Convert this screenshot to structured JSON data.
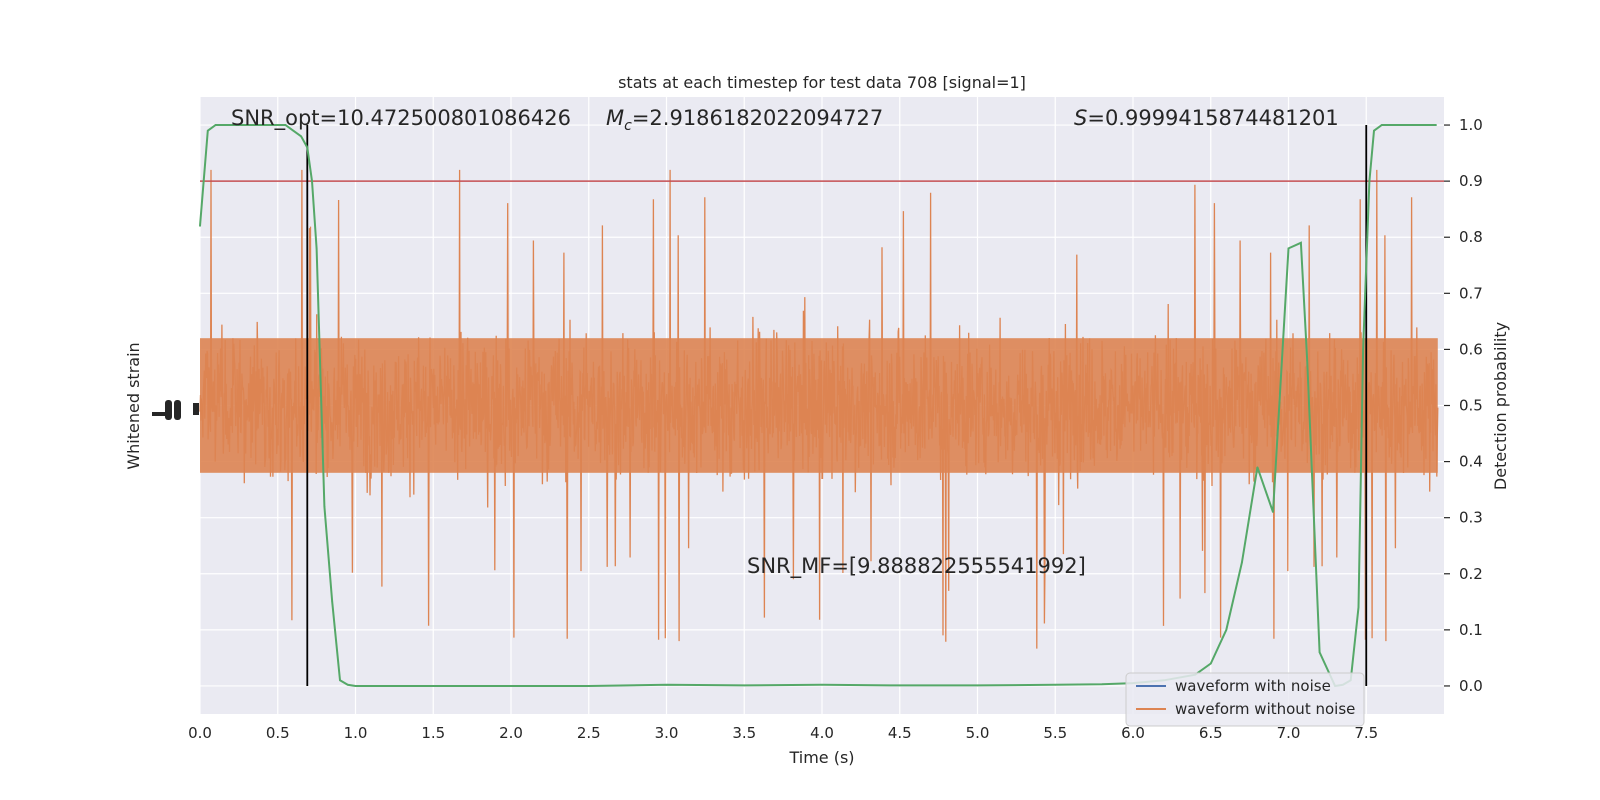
{
  "chart_data": {
    "type": "line",
    "title": "stats at each timestep for test data 708 [signal=1]",
    "xlabel": "Time (s)",
    "ylabel_left": "Whitened strain",
    "ylabel_right": "Detection probability",
    "xlim": [
      0.0,
      8.0
    ],
    "ylim_right": [
      -0.05,
      1.05
    ],
    "x_ticks": [
      "0.0",
      "0.5",
      "1.0",
      "1.5",
      "2.0",
      "2.5",
      "3.0",
      "3.5",
      "4.0",
      "4.5",
      "5.0",
      "5.5",
      "6.0",
      "6.5",
      "7.0",
      "7.5"
    ],
    "y_ticks_right": [
      "0.0",
      "0.1",
      "0.2",
      "0.3",
      "0.4",
      "0.5",
      "0.6",
      "0.7",
      "0.8",
      "0.9",
      "1.0"
    ],
    "grid": true,
    "legend_placement": "lower-right",
    "annotations": {
      "snr_opt": "SNR_opt=10.472500801086426",
      "mc_symbol": "M",
      "mc_sub": "c",
      "mc_value": "=2.9186182022094727",
      "s_symbol": "S",
      "s_value": "=0.9999415874481201",
      "snr_mf": "SNR_MF=[9.888822555541992]"
    },
    "threshold": 0.9,
    "vlines": [
      0.69,
      7.5
    ],
    "series": [
      {
        "name": "waveform with noise",
        "color": "#4c72b0",
        "kind": "noise-trace",
        "visible_in_plot": false
      },
      {
        "name": "waveform without noise",
        "color": "#dd8452",
        "kind": "noise-trace",
        "approx_envelope": {
          "center": 0.5,
          "typical_upper": 0.7,
          "typical_lower": 0.3,
          "max": 0.92,
          "min": 0.0
        }
      },
      {
        "name": "Detection probability",
        "color": "#55a868",
        "axis": "right",
        "x": [
          0.0,
          0.05,
          0.1,
          0.2,
          0.3,
          0.4,
          0.5,
          0.55,
          0.6,
          0.65,
          0.69,
          0.72,
          0.75,
          0.8,
          0.85,
          0.9,
          0.95,
          1.0,
          1.1,
          1.5,
          2.0,
          2.5,
          3.0,
          3.5,
          4.0,
          4.5,
          5.0,
          5.5,
          5.8,
          6.0,
          6.2,
          6.4,
          6.5,
          6.6,
          6.7,
          6.8,
          6.9,
          7.0,
          7.08,
          7.12,
          7.2,
          7.3,
          7.35,
          7.4,
          7.45,
          7.48,
          7.52,
          7.55,
          7.6,
          7.65,
          7.8,
          7.95
        ],
        "y": [
          0.82,
          0.99,
          1.0,
          1.0,
          1.0,
          1.0,
          1.0,
          1.0,
          0.99,
          0.98,
          0.96,
          0.9,
          0.78,
          0.32,
          0.15,
          0.01,
          0.002,
          0.0,
          0.0,
          0.0,
          0.0,
          0.0,
          0.002,
          0.001,
          0.002,
          0.001,
          0.001,
          0.002,
          0.003,
          0.005,
          0.01,
          0.02,
          0.04,
          0.1,
          0.22,
          0.39,
          0.31,
          0.78,
          0.79,
          0.58,
          0.06,
          0.0,
          0.002,
          0.01,
          0.14,
          0.6,
          0.9,
          0.99,
          1.0,
          1.0,
          1.0,
          1.0
        ]
      }
    ]
  }
}
